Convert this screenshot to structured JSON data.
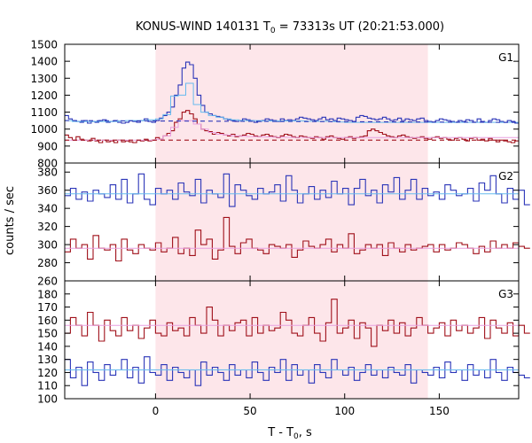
{
  "chart_data": {
    "type": "line",
    "title_prefix": "KONUS-WIND 140131 T",
    "title_sub": "0",
    "title_suffix": " = 73313s UT (20:21:53.000)",
    "xlabel_prefix": "T - T",
    "xlabel_sub": "0",
    "xlabel_suffix": ", s",
    "ylabel": "counts / sec",
    "xlim": [
      -48,
      192
    ],
    "x_ticks": [
      0,
      50,
      100,
      150
    ],
    "x_tick_labels": [
      "0",
      "50",
      "100",
      "150"
    ],
    "shaded_interval": [
      0,
      144
    ],
    "colors": {
      "blue": "#2b35b8",
      "red": "#a0101a",
      "lightblue": "#66bbee",
      "pink": "#e8a0e0",
      "shade": "#fde6ea"
    },
    "panels": [
      {
        "label": "G1",
        "ylim": [
          800,
          1500
        ],
        "y_ticks": [
          800,
          900,
          1000,
          1100,
          1200,
          1300,
          1400,
          1500
        ],
        "y_tick_labels": [
          "800",
          "900",
          "1000",
          "1100",
          "1200",
          "1300",
          "1400",
          "1500"
        ],
        "series": [
          {
            "color": "blue",
            "step": true,
            "x0": -48,
            "dx": 2,
            "values": [
              1080,
              1060,
              1050,
              1045,
              1040,
              1050,
              1035,
              1045,
              1040,
              1050,
              1055,
              1040,
              1045,
              1050,
              1040,
              1035,
              1040,
              1050,
              1045,
              1040,
              1050,
              1060,
              1045,
              1040,
              1050,
              1065,
              1080,
              1100,
              1130,
              1200,
              1260,
              1360,
              1395,
              1380,
              1300,
              1200,
              1140,
              1100,
              1090,
              1080,
              1075,
              1070,
              1060,
              1055,
              1050,
              1045,
              1050,
              1060,
              1055,
              1050,
              1040,
              1045,
              1050,
              1060,
              1055,
              1050,
              1045,
              1060,
              1050,
              1055,
              1050,
              1060,
              1070,
              1065,
              1060,
              1055,
              1050,
              1060,
              1070,
              1055,
              1060,
              1050,
              1065,
              1060,
              1055,
              1050,
              1045,
              1070,
              1080,
              1075,
              1065,
              1060,
              1055,
              1060,
              1070,
              1060,
              1050,
              1055,
              1065,
              1050,
              1060,
              1055,
              1050,
              1060,
              1065,
              1050,
              1045,
              1040,
              1050,
              1060,
              1055,
              1050,
              1045,
              1040,
              1050,
              1045,
              1055,
              1050,
              1040,
              1060,
              1045,
              1040,
              1050,
              1060,
              1055,
              1045,
              1040,
              1050,
              1045,
              1035
            ]
          },
          {
            "color": "red",
            "step": true,
            "x0": -48,
            "dx": 2,
            "values": [
              965,
              950,
              935,
              955,
              940,
              935,
              930,
              945,
              930,
              920,
              935,
              925,
              930,
              920,
              935,
              925,
              930,
              925,
              920,
              935,
              930,
              940,
              930,
              935,
              950,
              940,
              960,
              975,
              990,
              1040,
              1060,
              1100,
              1110,
              1090,
              1060,
              1030,
              1000,
              990,
              985,
              970,
              980,
              975,
              965,
              960,
              970,
              955,
              960,
              965,
              975,
              970,
              960,
              955,
              965,
              970,
              960,
              955,
              950,
              960,
              970,
              965,
              955,
              950,
              960,
              955,
              950,
              945,
              955,
              950,
              940,
              955,
              960,
              950,
              945,
              940,
              950,
              955,
              945,
              950,
              955,
              960,
              990,
              1000,
              990,
              980,
              970,
              960,
              955,
              950,
              960,
              965,
              955,
              950,
              945,
              950,
              955,
              945,
              940,
              950,
              955,
              945,
              950,
              940,
              935,
              945,
              950,
              940,
              930,
              945,
              950,
              935,
              940,
              930,
              945,
              935,
              925,
              935,
              930,
              925,
              920,
              930
            ]
          },
          {
            "color": "lightblue",
            "step": true,
            "x0": -48,
            "dx": 4,
            "values": [
              1050,
              1045,
              1045,
              1045,
              1045,
              1045,
              1045,
              1048,
              1050,
              1050,
              1050,
              1055,
              1060,
              1085,
              1195,
              1200,
              1270,
              1145,
              1100,
              1080,
              1070,
              1060,
              1055,
              1050,
              1050,
              1050,
              1048,
              1048,
              1048,
              1048,
              1048,
              1048,
              1046,
              1046,
              1046,
              1044,
              1042,
              1040,
              1040,
              1040,
              1040,
              1040,
              1040,
              1040,
              1040,
              1040,
              1040,
              1040,
              1040,
              1040,
              1040,
              1040,
              1040,
              1040,
              1040,
              1040,
              1040,
              1040,
              1040,
              1040
            ]
          },
          {
            "color": "pink",
            "step": true,
            "x0": -48,
            "dx": 4,
            "values": [
              935,
              935,
              935,
              935,
              935,
              935,
              935,
              935,
              935,
              935,
              935,
              935,
              940,
              960,
              1010,
              1050,
              1050,
              1030,
              1000,
              980,
              970,
              965,
              960,
              958,
              956,
              955,
              954,
              953,
              952,
              952,
              951,
              951,
              950,
              950,
              950,
              950,
              950,
              950,
              950,
              950,
              950,
              950,
              950,
              950,
              950,
              950,
              950,
              950,
              950,
              950,
              950,
              950,
              950,
              950,
              950,
              950,
              950,
              950,
              950,
              950
            ]
          },
          {
            "color": "blue",
            "dashed": true,
            "points": [
              [
                -48,
                1050
              ],
              [
                192,
                1040
              ]
            ]
          },
          {
            "color": "red",
            "dashed": true,
            "points": [
              [
                -48,
                935
              ],
              [
                192,
                935
              ]
            ]
          }
        ]
      },
      {
        "label": "G2",
        "ylim": [
          260,
          390
        ],
        "y_ticks": [
          260,
          280,
          300,
          320,
          340,
          360,
          380
        ],
        "y_tick_labels": [
          "260",
          "280",
          "300",
          "320",
          "340",
          "360",
          "380"
        ],
        "series": [
          {
            "color": "blue",
            "step": true,
            "x0": -48,
            "dx": 3,
            "values": [
              354,
              362,
              350,
              358,
              348,
              360,
              356,
              352,
              366,
              350,
              372,
              346,
              356,
              378,
              350,
              344,
              362,
              356,
              360,
              350,
              368,
              358,
              354,
              372,
              346,
              360,
              356,
              352,
              378,
              342,
              366,
              360,
              354,
              350,
              362,
              356,
              358,
              366,
              348,
              376,
              360,
              346,
              356,
              364,
              350,
              360,
              352,
              370,
              356,
              362,
              344,
              362,
              372,
              354,
              360,
              346,
              366,
              358,
              374,
              350,
              360,
              372,
              350,
              362,
              354,
              358,
              350,
              366,
              360,
              354,
              356,
              362,
              348,
              368,
              360,
              376,
              356,
              346,
              362,
              350,
              360,
              344
            ]
          },
          {
            "color": "red",
            "step": true,
            "x0": -48,
            "dx": 3,
            "values": [
              292,
              306,
              296,
              300,
              284,
              310,
              296,
              294,
              300,
              282,
              306,
              294,
              290,
              300,
              296,
              294,
              302,
              292,
              296,
              308,
              290,
              296,
              288,
              316,
              300,
              306,
              284,
              294,
              330,
              298,
              290,
              302,
              306,
              296,
              294,
              290,
              300,
              298,
              296,
              300,
              286,
              294,
              304,
              298,
              296,
              300,
              306,
              292,
              300,
              296,
              312,
              290,
              294,
              300,
              296,
              300,
              288,
              302,
              296,
              292,
              300,
              294,
              296,
              298,
              300,
              292,
              300,
              294,
              296,
              302,
              300,
              296,
              290,
              298,
              292,
              304,
              296,
              300,
              296,
              302,
              298,
              296
            ]
          },
          {
            "color": "lightblue",
            "points": [
              [
                -48,
                356
              ],
              [
                192,
                356
              ]
            ]
          },
          {
            "color": "pink",
            "points": [
              [
                -48,
                296
              ],
              [
                192,
                296
              ]
            ]
          }
        ]
      },
      {
        "label": "G3",
        "ylim": [
          100,
          190
        ],
        "y_ticks": [
          100,
          110,
          120,
          130,
          140,
          150,
          160,
          170,
          180
        ],
        "y_tick_labels": [
          "100",
          "110",
          "120",
          "130",
          "140",
          "150",
          "160",
          "170",
          "180"
        ],
        "series": [
          {
            "color": "red",
            "step": true,
            "x0": -48,
            "dx": 3,
            "values": [
              150,
              162,
              156,
              148,
              166,
              156,
              144,
              160,
              152,
              148,
              162,
              152,
              156,
              146,
              154,
              160,
              150,
              148,
              158,
              152,
              154,
              148,
              162,
              156,
              150,
              170,
              160,
              148,
              156,
              152,
              158,
              160,
              148,
              162,
              150,
              156,
              152,
              154,
              166,
              160,
              150,
              148,
              156,
              162,
              150,
              144,
              158,
              176,
              150,
              154,
              160,
              146,
              158,
              154,
              140,
              156,
              152,
              160,
              150,
              158,
              148,
              154,
              162,
              156,
              150,
              154,
              158,
              148,
              160,
              152,
              156,
              150,
              154,
              162,
              146,
              160,
              154,
              150,
              158,
              148,
              156,
              150
            ]
          },
          {
            "color": "blue",
            "step": true,
            "x0": -48,
            "dx": 3,
            "values": [
              130,
              116,
              124,
              110,
              128,
              120,
              114,
              126,
              118,
              122,
              130,
              116,
              124,
              112,
              132,
              120,
              118,
              126,
              114,
              124,
              120,
              116,
              122,
              110,
              128,
              118,
              124,
              120,
              114,
              126,
              118,
              122,
              116,
              128,
              120,
              114,
              124,
              120,
              130,
              114,
              126,
              118,
              122,
              112,
              126,
              120,
              116,
              130,
              122,
              118,
              124,
              114,
              120,
              126,
              118,
              122,
              116,
              124,
              120,
              118,
              126,
              112,
              122,
              120,
              118,
              124,
              116,
              128,
              120,
              122,
              114,
              126,
              118,
              122,
              116,
              130,
              120,
              114,
              124,
              120,
              118,
              116
            ]
          },
          {
            "color": "pink",
            "points": [
              [
                -48,
                156
              ],
              [
                192,
                156
              ]
            ]
          },
          {
            "color": "lightblue",
            "points": [
              [
                -48,
                122
              ],
              [
                192,
                122
              ]
            ]
          }
        ]
      }
    ]
  }
}
